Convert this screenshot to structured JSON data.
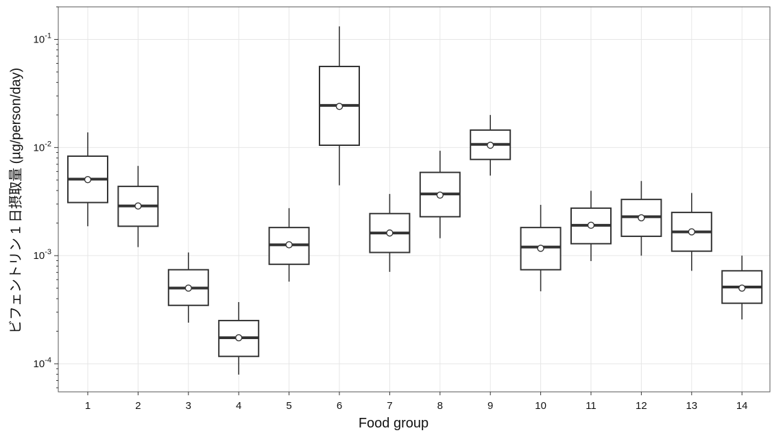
{
  "chart_data": {
    "type": "box",
    "xlabel": "Food group",
    "ylabel": "ビフェントリン 1 日摂取量 (µg/person/day)",
    "yscale": "log",
    "ylim": [
      5.5e-05,
      0.2
    ],
    "grid": true,
    "yticks": [
      {
        "value": 0.1,
        "base": "10",
        "exp": "-1"
      },
      {
        "value": 0.01,
        "base": "10",
        "exp": "-2"
      },
      {
        "value": 0.001,
        "base": "10",
        "exp": "-3"
      },
      {
        "value": 0.0001,
        "base": "10",
        "exp": "-4"
      }
    ],
    "categories": [
      "1",
      "2",
      "3",
      "4",
      "5",
      "6",
      "7",
      "8",
      "9",
      "10",
      "11",
      "12",
      "13",
      "14"
    ],
    "boxes": [
      {
        "group": "1",
        "whisker_low": 0.00187,
        "q1": 0.0031,
        "median": 0.0051,
        "q3": 0.00832,
        "whisker_high": 0.0138,
        "mean": 0.00505
      },
      {
        "group": "2",
        "whisker_low": 0.0012,
        "q1": 0.00187,
        "median": 0.00288,
        "q3": 0.00437,
        "whisker_high": 0.00676,
        "mean": 0.00288
      },
      {
        "group": "3",
        "whisker_low": 0.00024,
        "q1": 0.000347,
        "median": 0.000501,
        "q3": 0.000741,
        "whisker_high": 0.00107,
        "mean": 0.000501
      },
      {
        "group": "4",
        "whisker_low": 7.94e-05,
        "q1": 0.000117,
        "median": 0.000174,
        "q3": 0.000251,
        "whisker_high": 0.000372,
        "mean": 0.000174
      },
      {
        "group": "5",
        "whisker_low": 0.000575,
        "q1": 0.000832,
        "median": 0.00126,
        "q3": 0.00182,
        "whisker_high": 0.00275,
        "mean": 0.00126
      },
      {
        "group": "6",
        "whisker_low": 0.00447,
        "q1": 0.0105,
        "median": 0.0245,
        "q3": 0.0562,
        "whisker_high": 0.132,
        "mean": 0.024
      },
      {
        "group": "7",
        "whisker_low": 0.000708,
        "q1": 0.00107,
        "median": 0.00162,
        "q3": 0.00245,
        "whisker_high": 0.00372,
        "mean": 0.00162
      },
      {
        "group": "8",
        "whisker_low": 0.00145,
        "q1": 0.00229,
        "median": 0.00372,
        "q3": 0.00589,
        "whisker_high": 0.00933,
        "mean": 0.00363
      },
      {
        "group": "9",
        "whisker_low": 0.0055,
        "q1": 0.00776,
        "median": 0.0107,
        "q3": 0.0145,
        "whisker_high": 0.02,
        "mean": 0.0105
      },
      {
        "group": "10",
        "whisker_low": 0.000468,
        "q1": 0.000741,
        "median": 0.0012,
        "q3": 0.00182,
        "whisker_high": 0.00295,
        "mean": 0.00117
      },
      {
        "group": "11",
        "whisker_low": 0.000891,
        "q1": 0.00129,
        "median": 0.00191,
        "q3": 0.00275,
        "whisker_high": 0.00398,
        "mean": 0.00191
      },
      {
        "group": "12",
        "whisker_low": 0.001,
        "q1": 0.00151,
        "median": 0.00229,
        "q3": 0.00331,
        "whisker_high": 0.0049,
        "mean": 0.00224
      },
      {
        "group": "13",
        "whisker_low": 0.000724,
        "q1": 0.0011,
        "median": 0.00166,
        "q3": 0.00251,
        "whisker_high": 0.0038,
        "mean": 0.00166
      },
      {
        "group": "14",
        "whisker_low": 0.000257,
        "q1": 0.000363,
        "median": 0.000513,
        "q3": 0.000724,
        "whisker_high": 0.001,
        "mean": 0.000501
      }
    ]
  }
}
